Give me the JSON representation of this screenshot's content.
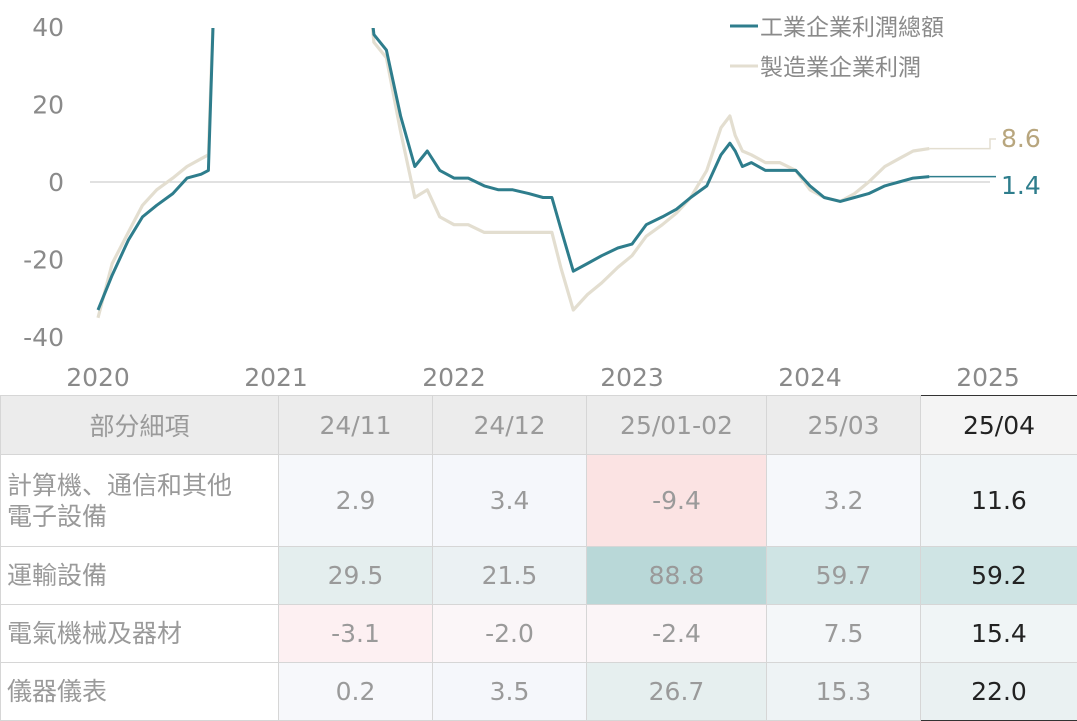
{
  "chart_data": {
    "type": "line",
    "x_ticks": [
      "2020",
      "2021",
      "2022",
      "2023",
      "2024",
      "2025"
    ],
    "y_ticks": [
      "40",
      "20",
      "0",
      "-20",
      "-40"
    ],
    "ylim": [
      -40,
      40
    ],
    "legend": [
      "工業企業利潤總額",
      "製造業企業利潤"
    ],
    "legend_position": "top-right",
    "series": [
      {
        "name": "工業企業利潤總額",
        "color": "#2e7d8c",
        "end_label": "1.4",
        "points": [
          [
            2020.0,
            -33
          ],
          [
            2020.08,
            -24
          ],
          [
            2020.17,
            -15
          ],
          [
            2020.25,
            -9
          ],
          [
            2020.33,
            -6
          ],
          [
            2020.42,
            -3
          ],
          [
            2020.5,
            1
          ],
          [
            2020.58,
            2
          ],
          [
            2020.62,
            3
          ],
          [
            2020.66,
            60
          ],
          [
            2021.5,
            60
          ],
          [
            2021.55,
            38
          ],
          [
            2021.62,
            34
          ],
          [
            2021.7,
            17
          ],
          [
            2021.78,
            4
          ],
          [
            2021.85,
            8
          ],
          [
            2021.92,
            3
          ],
          [
            2022.0,
            1
          ],
          [
            2022.08,
            1
          ],
          [
            2022.17,
            -1
          ],
          [
            2022.25,
            -2
          ],
          [
            2022.33,
            -2
          ],
          [
            2022.42,
            -3
          ],
          [
            2022.5,
            -4
          ],
          [
            2022.55,
            -4
          ],
          [
            2022.6,
            -12
          ],
          [
            2022.67,
            -23
          ],
          [
            2022.75,
            -21
          ],
          [
            2022.83,
            -19
          ],
          [
            2022.92,
            -17
          ],
          [
            2023.0,
            -16
          ],
          [
            2023.08,
            -11
          ],
          [
            2023.17,
            -9
          ],
          [
            2023.25,
            -7
          ],
          [
            2023.33,
            -4
          ],
          [
            2023.42,
            -1
          ],
          [
            2023.5,
            7
          ],
          [
            2023.55,
            10
          ],
          [
            2023.58,
            8
          ],
          [
            2023.62,
            4
          ],
          [
            2023.67,
            5
          ],
          [
            2023.75,
            3
          ],
          [
            2023.83,
            3
          ],
          [
            2023.92,
            3
          ],
          [
            2024.0,
            -1
          ],
          [
            2024.08,
            -4
          ],
          [
            2024.17,
            -5
          ],
          [
            2024.25,
            -4
          ],
          [
            2024.33,
            -3
          ],
          [
            2024.42,
            -1
          ],
          [
            2024.5,
            0
          ],
          [
            2024.58,
            1
          ],
          [
            2024.67,
            1.4
          ]
        ]
      },
      {
        "name": "製造業企業利潤",
        "color": "#e3ded0",
        "end_label": "8.6",
        "points": [
          [
            2020.0,
            -35
          ],
          [
            2020.08,
            -21
          ],
          [
            2020.17,
            -13
          ],
          [
            2020.25,
            -6
          ],
          [
            2020.33,
            -2
          ],
          [
            2020.42,
            1
          ],
          [
            2020.5,
            4
          ],
          [
            2020.58,
            6
          ],
          [
            2020.62,
            7
          ],
          [
            2020.66,
            60
          ],
          [
            2021.5,
            60
          ],
          [
            2021.55,
            36
          ],
          [
            2021.62,
            32
          ],
          [
            2021.7,
            13
          ],
          [
            2021.78,
            -4
          ],
          [
            2021.85,
            -2
          ],
          [
            2021.92,
            -9
          ],
          [
            2022.0,
            -11
          ],
          [
            2022.08,
            -11
          ],
          [
            2022.17,
            -13
          ],
          [
            2022.25,
            -13
          ],
          [
            2022.33,
            -13
          ],
          [
            2022.42,
            -13
          ],
          [
            2022.5,
            -13
          ],
          [
            2022.55,
            -13
          ],
          [
            2022.6,
            -22
          ],
          [
            2022.67,
            -33
          ],
          [
            2022.75,
            -29
          ],
          [
            2022.83,
            -26
          ],
          [
            2022.92,
            -22
          ],
          [
            2023.0,
            -19
          ],
          [
            2023.08,
            -14
          ],
          [
            2023.17,
            -11
          ],
          [
            2023.25,
            -8
          ],
          [
            2023.33,
            -4
          ],
          [
            2023.42,
            3
          ],
          [
            2023.5,
            14
          ],
          [
            2023.55,
            17
          ],
          [
            2023.58,
            12
          ],
          [
            2023.62,
            8
          ],
          [
            2023.67,
            7
          ],
          [
            2023.75,
            5
          ],
          [
            2023.83,
            5
          ],
          [
            2023.92,
            3
          ],
          [
            2024.0,
            -2
          ],
          [
            2024.08,
            -4
          ],
          [
            2024.17,
            -5
          ],
          [
            2024.25,
            -3
          ],
          [
            2024.33,
            0
          ],
          [
            2024.42,
            4
          ],
          [
            2024.5,
            6
          ],
          [
            2024.58,
            8
          ],
          [
            2024.67,
            8.6
          ]
        ]
      }
    ]
  },
  "table": {
    "header_label": "部分細項",
    "columns": [
      "24/11",
      "24/12",
      "25/01-02",
      "25/03",
      "25/04"
    ],
    "rows": [
      {
        "label_line1": "計算機、通信和其他",
        "label_line2": "電子設備",
        "cells": [
          {
            "v": "2.9",
            "bg": "#f6f8fb"
          },
          {
            "v": "3.4",
            "bg": "#f5f7fb"
          },
          {
            "v": "-9.4",
            "bg": "#fbe3e3"
          },
          {
            "v": "3.2",
            "bg": "#f6f8fb"
          },
          {
            "v": "11.6",
            "bg": "#f1f5f7"
          }
        ]
      },
      {
        "label_line1": "運輸設備",
        "label_line2": "",
        "cells": [
          {
            "v": "29.5",
            "bg": "#e4eeee"
          },
          {
            "v": "21.5",
            "bg": "#ebf1f3"
          },
          {
            "v": "88.8",
            "bg": "#b9d8d8"
          },
          {
            "v": "59.7",
            "bg": "#cfe4e4"
          },
          {
            "v": "59.2",
            "bg": "#cfe4e4"
          }
        ]
      },
      {
        "label_line1": "電氣機械及器材",
        "label_line2": "",
        "cells": [
          {
            "v": "-3.1",
            "bg": "#fdf0f2"
          },
          {
            "v": "-2.0",
            "bg": "#fbf6f8"
          },
          {
            "v": "-2.4",
            "bg": "#fbf5f7"
          },
          {
            "v": "7.5",
            "bg": "#f4f7f9"
          },
          {
            "v": "15.4",
            "bg": "#f0f5f6"
          }
        ]
      },
      {
        "label_line1": "儀器儀表",
        "label_line2": "",
        "cells": [
          {
            "v": "0.2",
            "bg": "#f7f8fb"
          },
          {
            "v": "3.5",
            "bg": "#f5f7fb"
          },
          {
            "v": "26.7",
            "bg": "#e6efef"
          },
          {
            "v": "15.3",
            "bg": "#eef3f5"
          },
          {
            "v": "22.0",
            "bg": "#eaf1f2"
          }
        ]
      }
    ]
  }
}
